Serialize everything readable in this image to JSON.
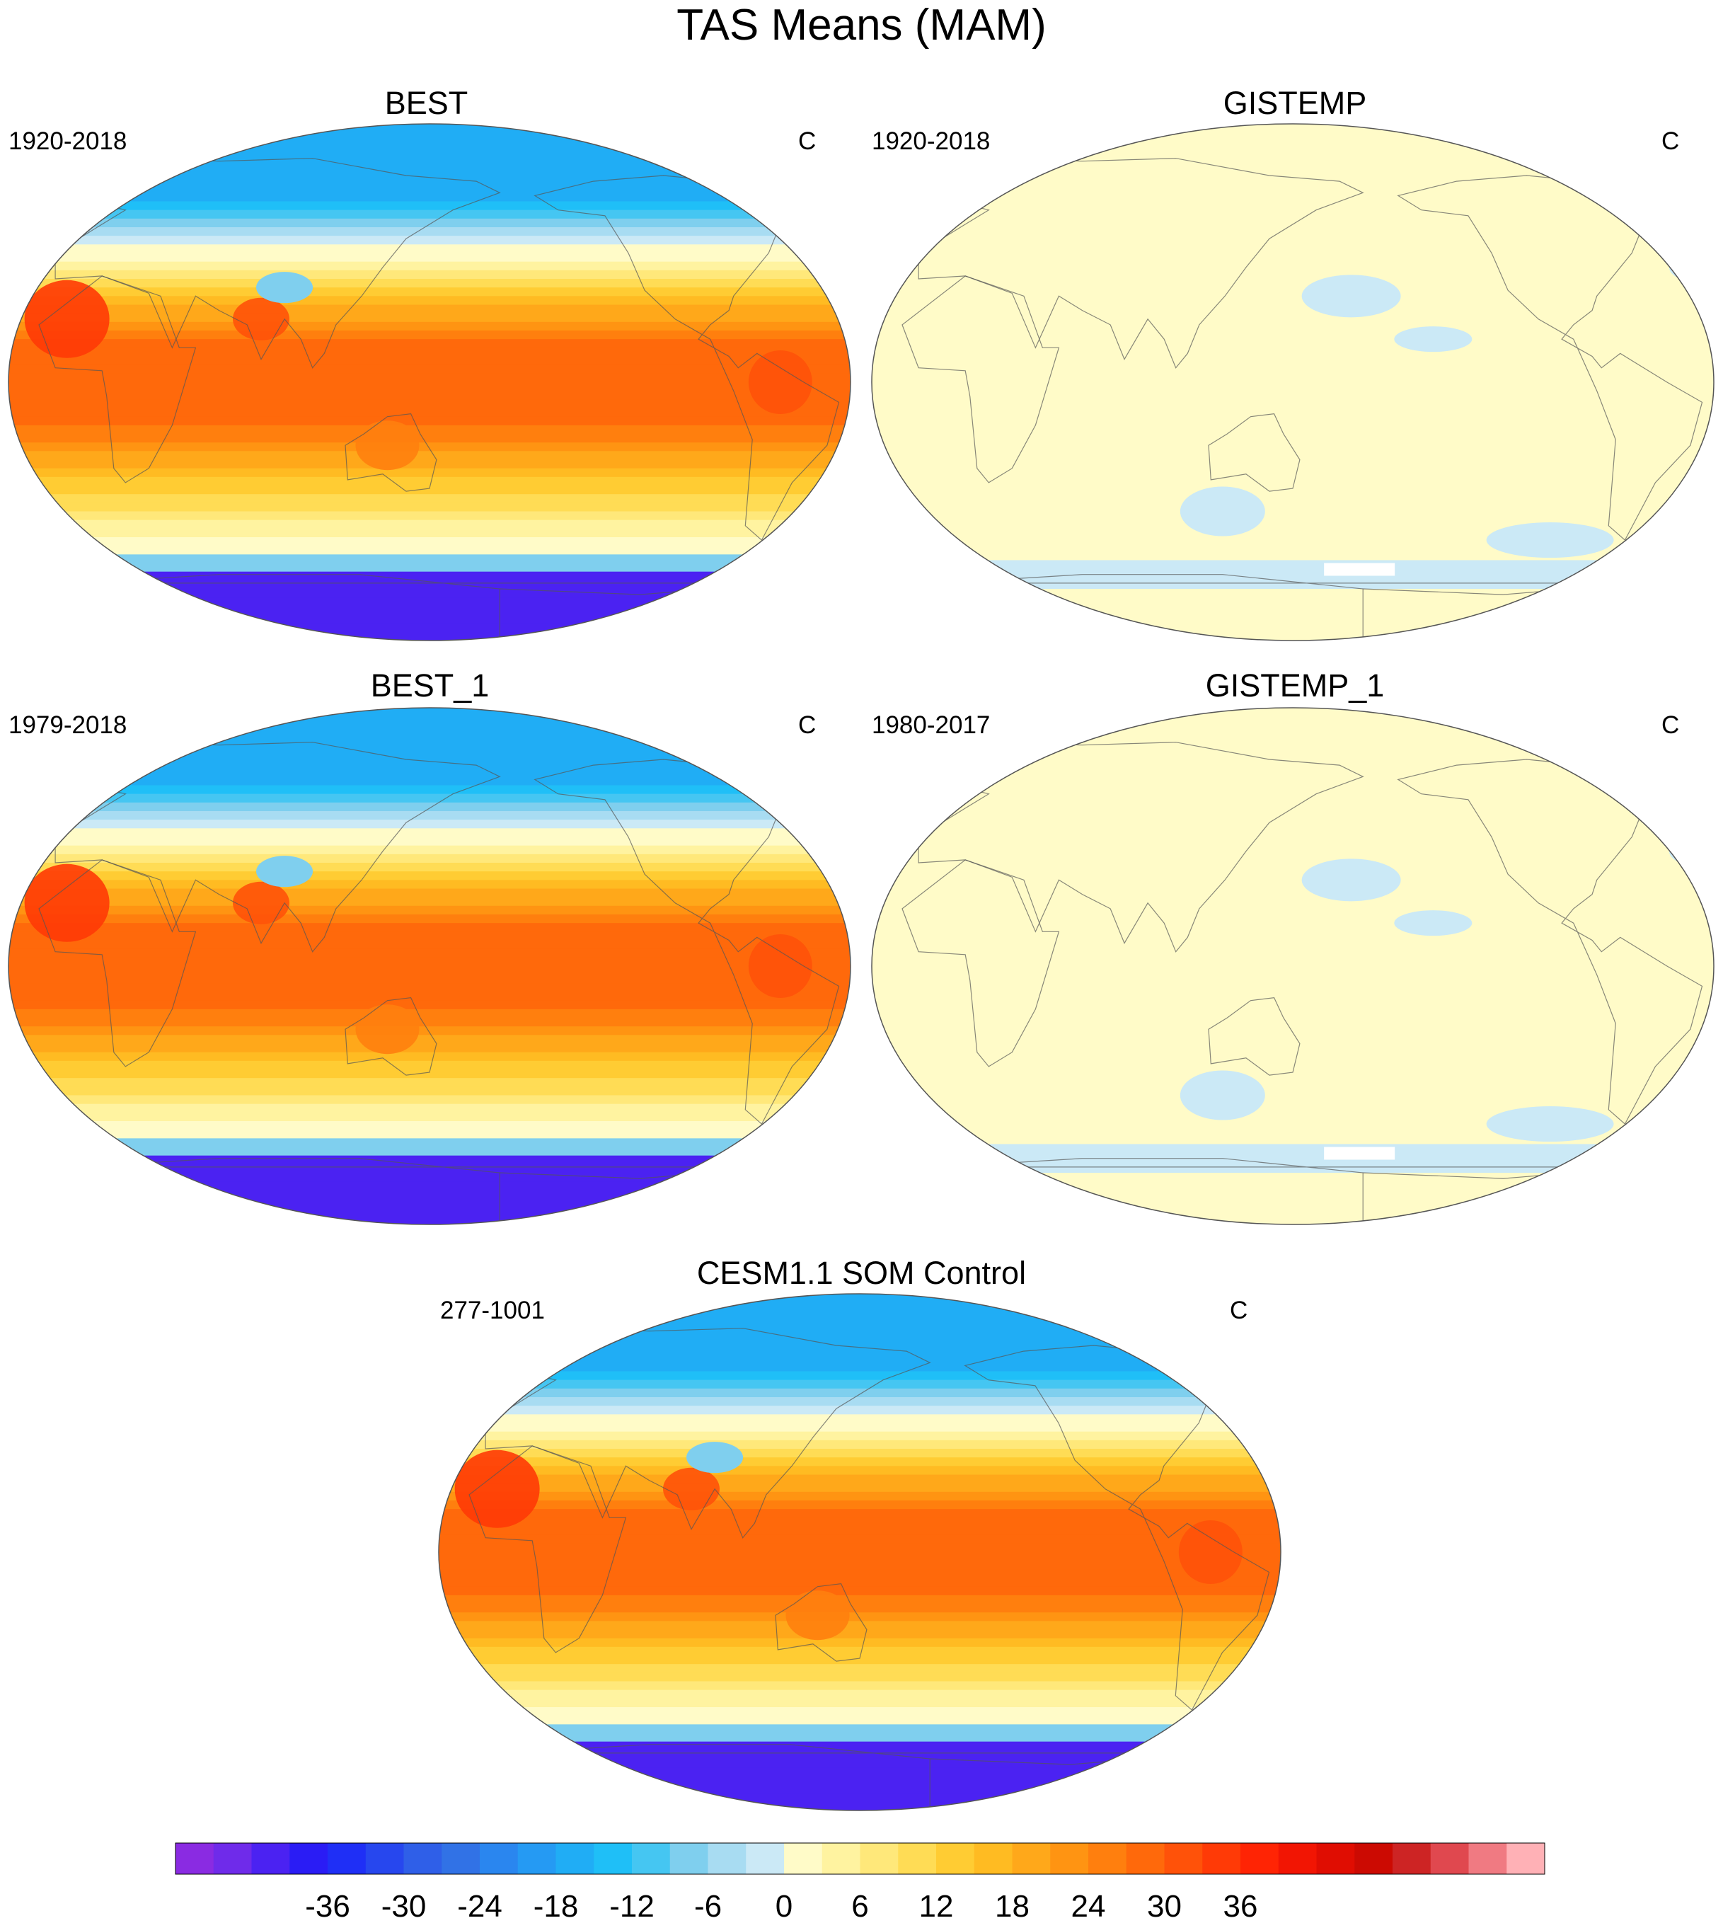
{
  "title": "TAS Means (MAM)",
  "panels": [
    {
      "id": "best",
      "title": "BEST",
      "period": "1920-2018",
      "units": "C",
      "style": "climatology"
    },
    {
      "id": "gistemp",
      "title": "GISTEMP",
      "period": "1920-2018",
      "units": "C",
      "style": "flat"
    },
    {
      "id": "best1",
      "title": "BEST_1",
      "period": "1979-2018",
      "units": "C",
      "style": "climatology"
    },
    {
      "id": "gistemp1",
      "title": "GISTEMP_1",
      "period": "1980-2017",
      "units": "C",
      "style": "flat"
    },
    {
      "id": "cesm",
      "title": "CESM1.1 SOM Control",
      "period": "277-1001",
      "units": "C",
      "style": "climatology"
    }
  ],
  "colorbar": {
    "colors": [
      "#8a2be2",
      "#6f2bea",
      "#4b22f2",
      "#2a1cf5",
      "#1f2ff6",
      "#2747ee",
      "#2f5fe8",
      "#3172e6",
      "#2a86ef",
      "#259af3",
      "#20adf5",
      "#1fbff7",
      "#45c6f2",
      "#7fcfee",
      "#a8dcf2",
      "#cbe9f6",
      "#fffbc8",
      "#fff3a0",
      "#ffe87a",
      "#ffdc55",
      "#ffcc33",
      "#ffbb22",
      "#ffa81a",
      "#ff9412",
      "#ff7f0e",
      "#ff690b",
      "#ff5209",
      "#ff3a06",
      "#ff2404",
      "#f21503",
      "#e00d02",
      "#cc0a02",
      "#cd2424",
      "#e0484f",
      "#f07a82",
      "#ffb1b6"
    ],
    "tick_labels": [
      "-36",
      "-30",
      "-24",
      "-18",
      "-12",
      "-6",
      "0",
      "6",
      "12",
      "18",
      "24",
      "30",
      "36"
    ]
  }
}
